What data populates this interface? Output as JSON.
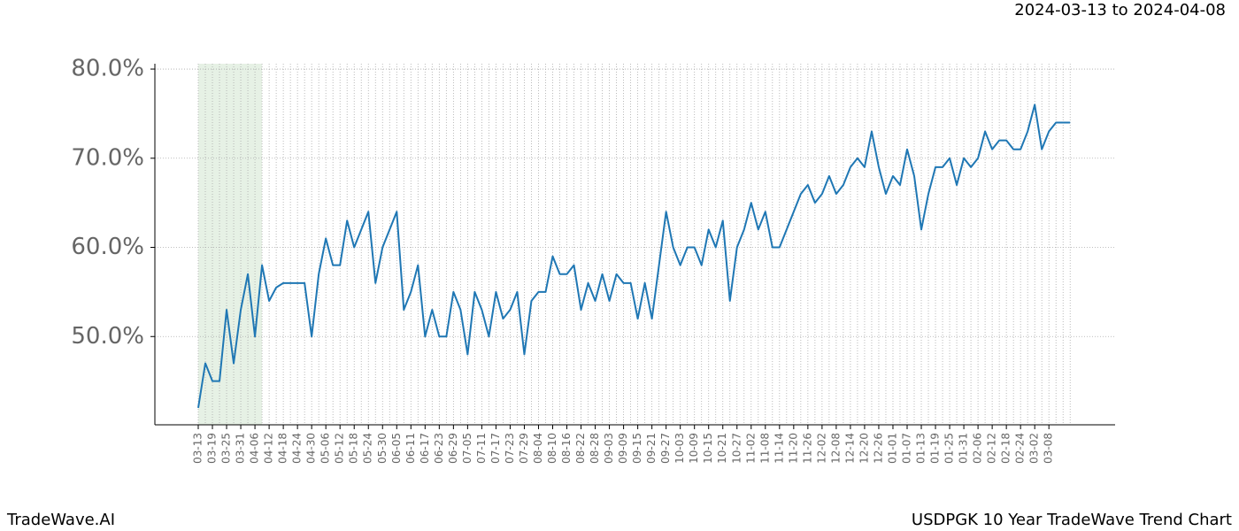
{
  "chart_data": {
    "type": "line",
    "title": "USDPGK 10 Year TradeWave Trend Chart",
    "subtitle": "2024-03-13 to 2024-04-08",
    "brand": "TradeWave.AI",
    "categories": [
      "03-13",
      null,
      "03-19",
      null,
      "03-25",
      null,
      "03-31",
      null,
      "04-06",
      null,
      "04-12",
      null,
      "04-18",
      null,
      "04-24",
      null,
      "04-30",
      null,
      "05-06",
      null,
      "05-12",
      null,
      "05-18",
      null,
      "05-24",
      null,
      "05-30",
      null,
      "06-05",
      null,
      "06-11",
      null,
      "06-17",
      null,
      "06-23",
      null,
      "06-29",
      null,
      "07-05",
      null,
      "07-11",
      null,
      "07-17",
      null,
      "07-23",
      null,
      "07-29",
      null,
      "08-04",
      null,
      "08-10",
      null,
      "08-16",
      null,
      "08-22",
      null,
      "08-28",
      null,
      "09-03",
      null,
      "09-09",
      null,
      "09-15",
      null,
      "09-21",
      null,
      "09-27",
      null,
      "10-03",
      null,
      "10-09",
      null,
      "10-15",
      null,
      "10-21",
      null,
      "10-27",
      null,
      "11-02",
      null,
      "11-08",
      null,
      "11-14",
      null,
      "11-20",
      null,
      "11-26",
      null,
      "12-02",
      null,
      "12-08",
      null,
      "12-14",
      null,
      "12-20",
      null,
      "12-26",
      null,
      "01-01",
      null,
      "01-07",
      null,
      "01-13",
      null,
      "01-19",
      null,
      "01-25",
      null,
      "01-31",
      null,
      "02-06",
      null,
      "02-12",
      null,
      "02-18",
      null,
      "02-24",
      null,
      "03-02",
      null,
      "03-08",
      null,
      null,
      null
    ],
    "values": [
      42,
      47,
      45,
      45,
      53,
      47,
      53,
      57,
      50,
      58,
      54,
      55.5,
      56,
      56,
      56,
      56,
      50,
      57,
      61,
      58,
      58,
      63,
      60,
      62,
      64,
      56,
      60,
      62,
      64,
      53,
      55,
      58,
      50,
      53,
      50,
      50,
      55,
      53,
      48,
      55,
      53,
      50,
      55,
      52,
      53,
      55,
      48,
      54,
      55,
      55,
      59,
      57,
      57,
      58,
      53,
      56,
      54,
      57,
      54,
      57,
      56,
      56,
      52,
      56,
      52,
      58,
      64,
      60,
      58,
      60,
      60,
      58,
      62,
      60,
      63,
      54,
      60,
      62,
      65,
      62,
      64,
      60,
      60,
      62,
      64,
      66,
      67,
      65,
      66,
      68,
      66,
      67,
      69,
      70,
      69,
      73,
      69,
      66,
      68,
      67,
      71,
      68,
      62,
      66,
      69,
      69,
      70,
      67,
      70,
      69,
      70,
      73,
      71,
      72,
      72,
      71,
      71,
      73,
      76,
      71,
      73,
      74,
      74,
      74
    ],
    "color": "#1f77b4",
    "ylim": [
      40.1,
      80.6
    ],
    "yticks": [
      {
        "value": 50,
        "label": "50.0%"
      },
      {
        "value": 60,
        "label": "60.0%"
      },
      {
        "value": 70,
        "label": "70.0%"
      },
      {
        "value": 80,
        "label": "80.0%"
      }
    ],
    "grid": true
  }
}
